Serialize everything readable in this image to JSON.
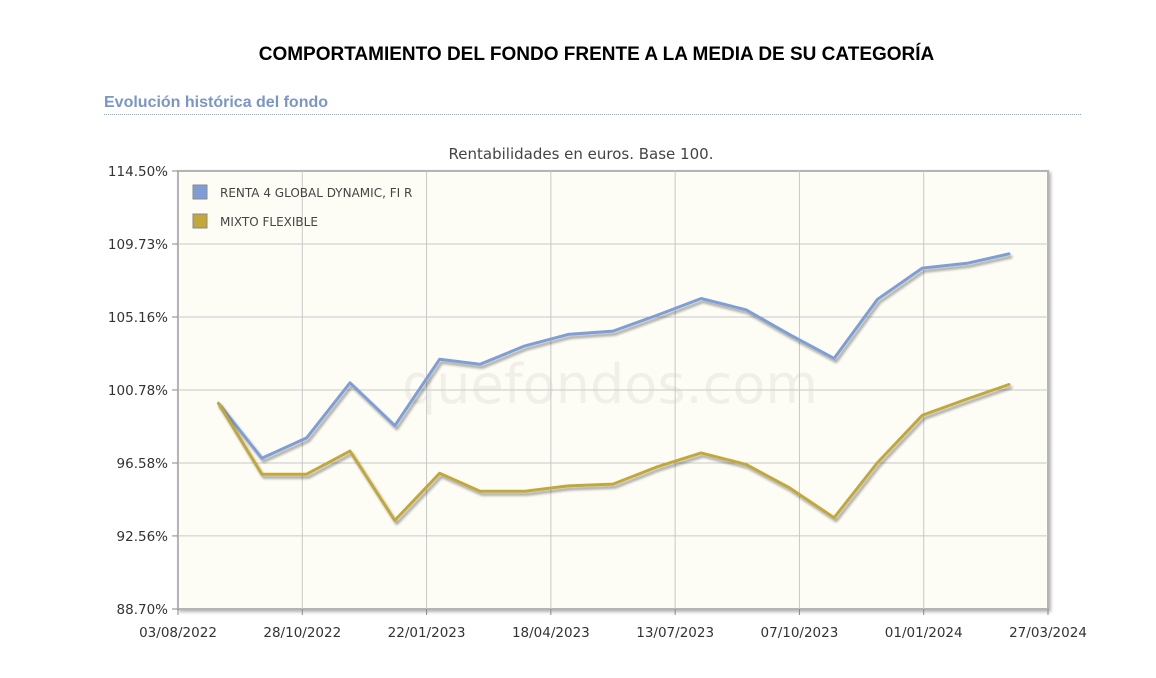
{
  "header": {
    "title": "COMPORTAMIENTO DEL FONDO FRENTE A LA MEDIA DE SU CATEGORÍA",
    "section_title": "Evolución histórica del fondo"
  },
  "chart_data": {
    "type": "line",
    "title": "Rentabilidades en euros. Base 100.",
    "watermark": "quefondos.com",
    "y_tick_labels": [
      "114.50%",
      "109.73%",
      "105.16%",
      "100.78%",
      "96.58%",
      "92.56%",
      "88.70%"
    ],
    "x_tick_labels": [
      "03/08/2022",
      "28/10/2022",
      "22/01/2023",
      "18/04/2023",
      "13/07/2023",
      "07/10/2023",
      "01/01/2024",
      "27/03/2024"
    ],
    "ylim": [
      "88.70%",
      "114.50%"
    ],
    "y_scale": "log",
    "grid": true,
    "legend_position": "top-left",
    "series": [
      {
        "name": "RENTA 4 GLOBAL DYNAMIC, FI R",
        "color": "#7f9ed6",
        "points": [
          {
            "x": "2022-08-31",
            "y": 100.0
          },
          {
            "x": "2022-09-30",
            "y": 96.85
          },
          {
            "x": "2022-10-31",
            "y": 98.0
          },
          {
            "x": "2022-11-30",
            "y": 101.2
          },
          {
            "x": "2022-12-31",
            "y": 98.7
          },
          {
            "x": "2023-01-31",
            "y": 102.6
          },
          {
            "x": "2023-02-28",
            "y": 102.3
          },
          {
            "x": "2023-03-31",
            "y": 103.4
          },
          {
            "x": "2023-04-30",
            "y": 104.1
          },
          {
            "x": "2023-05-31",
            "y": 104.3
          },
          {
            "x": "2023-06-30",
            "y": 105.25
          },
          {
            "x": "2023-07-31",
            "y": 106.3
          },
          {
            "x": "2023-08-31",
            "y": 105.6
          },
          {
            "x": "2023-09-30",
            "y": 104.1
          },
          {
            "x": "2023-10-31",
            "y": 102.65
          },
          {
            "x": "2023-11-30",
            "y": 106.25
          },
          {
            "x": "2023-12-31",
            "y": 108.2
          },
          {
            "x": "2024-01-31",
            "y": 108.5
          },
          {
            "x": "2024-02-29",
            "y": 109.1
          }
        ]
      },
      {
        "name": "MIXTO FLEXIBLE",
        "color": "#c2a83a",
        "points": [
          {
            "x": "2022-08-31",
            "y": 100.0
          },
          {
            "x": "2022-09-30",
            "y": 95.95
          },
          {
            "x": "2022-10-31",
            "y": 95.95
          },
          {
            "x": "2022-11-30",
            "y": 97.25
          },
          {
            "x": "2022-12-31",
            "y": 93.4
          },
          {
            "x": "2023-01-31",
            "y": 96.0
          },
          {
            "x": "2023-02-28",
            "y": 95.0
          },
          {
            "x": "2023-03-31",
            "y": 95.0
          },
          {
            "x": "2023-04-30",
            "y": 95.3
          },
          {
            "x": "2023-05-31",
            "y": 95.4
          },
          {
            "x": "2023-06-30",
            "y": 96.35
          },
          {
            "x": "2023-07-31",
            "y": 97.15
          },
          {
            "x": "2023-08-31",
            "y": 96.5
          },
          {
            "x": "2023-09-30",
            "y": 95.2
          },
          {
            "x": "2023-10-31",
            "y": 93.55
          },
          {
            "x": "2023-11-30",
            "y": 96.6
          },
          {
            "x": "2023-12-31",
            "y": 99.3
          },
          {
            "x": "2024-01-31",
            "y": 100.25
          },
          {
            "x": "2024-02-29",
            "y": 101.1
          }
        ]
      }
    ]
  }
}
